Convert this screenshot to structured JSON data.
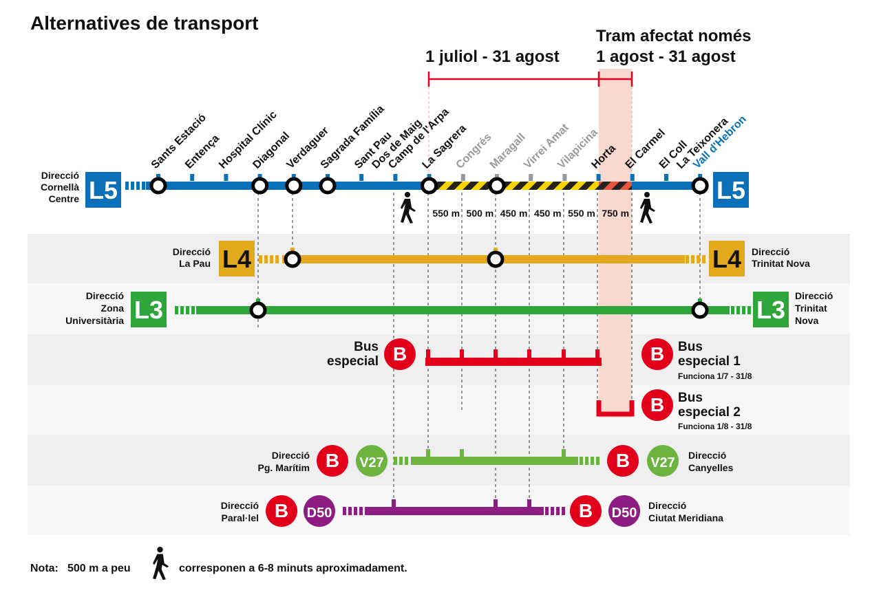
{
  "title": "Alternatives de transport",
  "period_main": "1 juliol - 31 agost",
  "period_section_line1": "Tram afectat només",
  "period_section_line2": "1 agost - 31 agost",
  "colors": {
    "l5": "#0a70b7",
    "l4": "#e3a81c",
    "l3": "#2ea63c",
    "bus_red": "#e2001a",
    "v27": "#6db33f",
    "d50": "#8d1d82",
    "affected_band": "#f8d9cf",
    "hazard_yellow": "#f5d400",
    "hazard_black": "#222222",
    "hazard_red": "#e8553a"
  },
  "l5": {
    "badge": "L5",
    "left_direction": [
      "Direcció",
      "Cornellà",
      "Centre"
    ],
    "stations": [
      {
        "name": "Sants Estació",
        "transfer": true,
        "closed": false
      },
      {
        "name": "Entença",
        "transfer": false,
        "closed": false
      },
      {
        "name": "Hospital Clínic",
        "transfer": false,
        "closed": false
      },
      {
        "name": "Diagonal",
        "transfer": true,
        "closed": false
      },
      {
        "name": "Verdaguer",
        "transfer": true,
        "closed": false
      },
      {
        "name": "Sagrada Família",
        "transfer": true,
        "closed": false
      },
      {
        "name": "Sant Pau\nDos de Maig",
        "transfer": false,
        "closed": false
      },
      {
        "name": "Camp de l'Arpa",
        "transfer": false,
        "closed": false
      },
      {
        "name": "La Sagrera",
        "transfer": true,
        "closed": false
      },
      {
        "name": "Congrés",
        "transfer": false,
        "closed": true
      },
      {
        "name": "Maragall",
        "transfer": true,
        "closed": true
      },
      {
        "name": "Virrei Amat",
        "transfer": false,
        "closed": true
      },
      {
        "name": "Vilapicina",
        "transfer": false,
        "closed": true
      },
      {
        "name": "Horta",
        "transfer": false,
        "closed": false
      },
      {
        "name": "El Carmel",
        "transfer": false,
        "closed": false
      },
      {
        "name": "El Coll\nLa Teixonera",
        "transfer": false,
        "closed": false
      },
      {
        "name": "Vall d'Hebron",
        "transfer": true,
        "closed": false,
        "terminal": true
      }
    ],
    "distances": [
      "550 m",
      "500 m",
      "450 m",
      "450 m",
      "550 m",
      "750 m"
    ]
  },
  "l4": {
    "badge": "L4",
    "left": [
      "Direcció",
      "La Pau"
    ],
    "right": [
      "Direcció",
      "Trinitat Nova"
    ]
  },
  "l3": {
    "badge": "L3",
    "left": [
      "Direcció",
      "Zona",
      "Universitària"
    ],
    "right": [
      "Direcció",
      "Trinitat",
      "Nova"
    ]
  },
  "bus_especial": {
    "badge": "B",
    "left": [
      "Bus",
      "especial"
    ],
    "right": [
      "Bus",
      "especial 1"
    ],
    "note": "Funciona 1/7 - 31/8"
  },
  "bus_especial2": {
    "badge": "B",
    "right": [
      "Bus",
      "especial 2"
    ],
    "note": "Funciona 1/8 - 31/8"
  },
  "v27": {
    "badge_b": "B",
    "badge": "V27",
    "left": [
      "Direcció",
      "Pg. Marítim"
    ],
    "right": [
      "Direcció",
      "Canyelles"
    ]
  },
  "d50": {
    "badge_b": "B",
    "badge": "D50",
    "left": [
      "Direcció",
      "Paral·lel"
    ],
    "right": [
      "Direcció",
      "Ciutat Meridiana"
    ]
  },
  "footnote": {
    "bold": "Nota:",
    "before": "500 m a peu",
    "after": "corresponen a 6-8 minuts aproximadament."
  }
}
